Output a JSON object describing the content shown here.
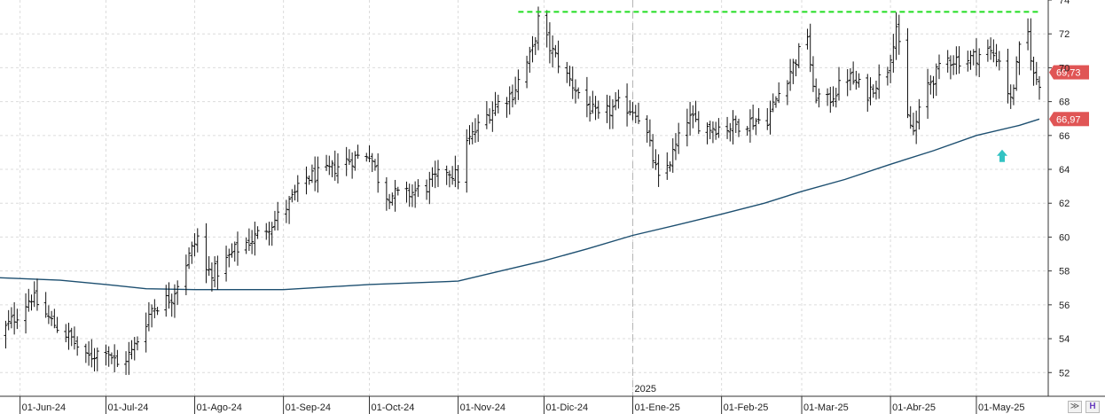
{
  "chart_data": {
    "type": "ohlc",
    "title": "",
    "xlabel": "",
    "ylabel": "",
    "ylim": [
      50.6,
      74.0
    ],
    "y_ticks": [
      52,
      54,
      56,
      58,
      60,
      62,
      64,
      66,
      68,
      70,
      72,
      74
    ],
    "x_ticks": [
      "01-Jun-24",
      "01-Jul-24",
      "01-Ago-24",
      "01-Sep-24",
      "01-Oct-24",
      "01-Nov-24",
      "01-Dic-24",
      "01-Ene-25",
      "01-Feb-25",
      "01-Mar-25",
      "01-Abr-25",
      "01-May-25"
    ],
    "x_range": [
      "2024-05-25",
      "2025-05-23"
    ],
    "year_marker": {
      "date": "2025-01-01",
      "label": "2025"
    },
    "grid": true,
    "y_axis_side": "right",
    "bar_color": "#111111",
    "price_bars": {
      "start": "2024-05-24",
      "weekdays_only": true,
      "anchors": [
        [
          "2024-05-24",
          54.0
        ],
        [
          "2024-06-05",
          56.5
        ],
        [
          "2024-06-12",
          55.0
        ],
        [
          "2024-06-19",
          54.0
        ],
        [
          "2024-06-24",
          52.8
        ],
        [
          "2024-07-01",
          53.5
        ],
        [
          "2024-07-05",
          52.4
        ],
        [
          "2024-07-10",
          53.2
        ],
        [
          "2024-07-17",
          55.8
        ],
        [
          "2024-07-24",
          56.5
        ],
        [
          "2024-07-29",
          58.5
        ],
        [
          "2024-08-02",
          60.0
        ],
        [
          "2024-08-05",
          58.0
        ],
        [
          "2024-08-09",
          58.0
        ],
        [
          "2024-08-15",
          59.2
        ],
        [
          "2024-08-22",
          60.0
        ],
        [
          "2024-08-29",
          61.0
        ],
        [
          "2024-09-03",
          62.0
        ],
        [
          "2024-09-09",
          63.5
        ],
        [
          "2024-09-16",
          63.8
        ],
        [
          "2024-09-23",
          64.5
        ],
        [
          "2024-10-01",
          65.0
        ],
        [
          "2024-10-04",
          63.5
        ],
        [
          "2024-10-07",
          62.5
        ],
        [
          "2024-10-14",
          62.5
        ],
        [
          "2024-10-21",
          63.0
        ],
        [
          "2024-10-28",
          64.0
        ],
        [
          "2024-11-01",
          63.5
        ],
        [
          "2024-11-04",
          65.5
        ],
        [
          "2024-11-08",
          66.5
        ],
        [
          "2024-11-14",
          67.8
        ],
        [
          "2024-11-20",
          68.5
        ],
        [
          "2024-11-27",
          71.0
        ],
        [
          "2024-11-29",
          72.8
        ],
        [
          "2024-12-03",
          71.2
        ],
        [
          "2024-12-09",
          69.5
        ],
        [
          "2024-12-16",
          67.8
        ],
        [
          "2024-12-20",
          67.0
        ],
        [
          "2024-12-27",
          67.8
        ],
        [
          "2025-01-02",
          67.5
        ],
        [
          "2025-01-06",
          66.0
        ],
        [
          "2025-01-10",
          63.3
        ],
        [
          "2025-01-14",
          64.5
        ],
        [
          "2025-01-20",
          67.0
        ],
        [
          "2025-01-27",
          66.5
        ],
        [
          "2025-02-03",
          66.5
        ],
        [
          "2025-02-10",
          66.8
        ],
        [
          "2025-02-17",
          67.0
        ],
        [
          "2025-02-21",
          68.5
        ],
        [
          "2025-02-27",
          70.5
        ],
        [
          "2025-03-03",
          72.0
        ],
        [
          "2025-03-05",
          68.5
        ],
        [
          "2025-03-10",
          68.0
        ],
        [
          "2025-03-17",
          69.5
        ],
        [
          "2025-03-24",
          68.5
        ],
        [
          "2025-03-31",
          70.0
        ],
        [
          "2025-04-03",
          72.5
        ],
        [
          "2025-04-07",
          67.0
        ],
        [
          "2025-04-09",
          66.2
        ],
        [
          "2025-04-14",
          69.0
        ],
        [
          "2025-04-21",
          70.5
        ],
        [
          "2025-04-28",
          70.5
        ],
        [
          "2025-05-05",
          71.0
        ],
        [
          "2025-05-09",
          70.5
        ],
        [
          "2025-05-13",
          68.0
        ],
        [
          "2025-05-16",
          71.0
        ],
        [
          "2025-05-19",
          72.0
        ],
        [
          "2025-05-21",
          69.5
        ],
        [
          "2025-05-23",
          69.2
        ]
      ]
    },
    "moving_average": {
      "color": "#1d4f70",
      "points": [
        [
          "2024-05-25",
          57.6
        ],
        [
          "2024-06-15",
          57.45
        ],
        [
          "2024-07-01",
          57.2
        ],
        [
          "2024-07-15",
          56.95
        ],
        [
          "2024-08-01",
          56.9
        ],
        [
          "2024-09-01",
          56.9
        ],
        [
          "2024-10-01",
          57.2
        ],
        [
          "2024-11-01",
          57.4
        ],
        [
          "2024-11-16",
          58.0
        ],
        [
          "2024-12-01",
          58.6
        ],
        [
          "2024-12-16",
          59.3
        ],
        [
          "2025-01-01",
          60.1
        ],
        [
          "2025-01-16",
          60.7
        ],
        [
          "2025-02-01",
          61.35
        ],
        [
          "2025-02-16",
          62.0
        ],
        [
          "2025-03-01",
          62.7
        ],
        [
          "2025-03-16",
          63.4
        ],
        [
          "2025-04-01",
          64.3
        ],
        [
          "2025-04-16",
          65.1
        ],
        [
          "2025-05-01",
          66.0
        ],
        [
          "2025-05-16",
          66.6
        ],
        [
          "2025-05-23",
          66.97
        ]
      ]
    },
    "resistance_line": {
      "value": 73.3,
      "from": "2024-11-22",
      "to": "2025-05-23",
      "color": "#22dd22",
      "style": "dashed"
    },
    "annotation_arrow": {
      "date": "2025-05-10",
      "value": 64.8,
      "direction": "up",
      "color": "#33c3c3"
    },
    "price_tags": [
      {
        "label": "69,73",
        "value": 69.73,
        "color": "#e05555"
      },
      {
        "label": "66,97",
        "value": 66.97,
        "color": "#e05555"
      }
    ]
  },
  "ui": {
    "collapse_icon": "double-chevron-down-icon",
    "collapse_glyph": "≫",
    "layout_icon": "h-layout-icon",
    "layout_glyph": "H"
  }
}
